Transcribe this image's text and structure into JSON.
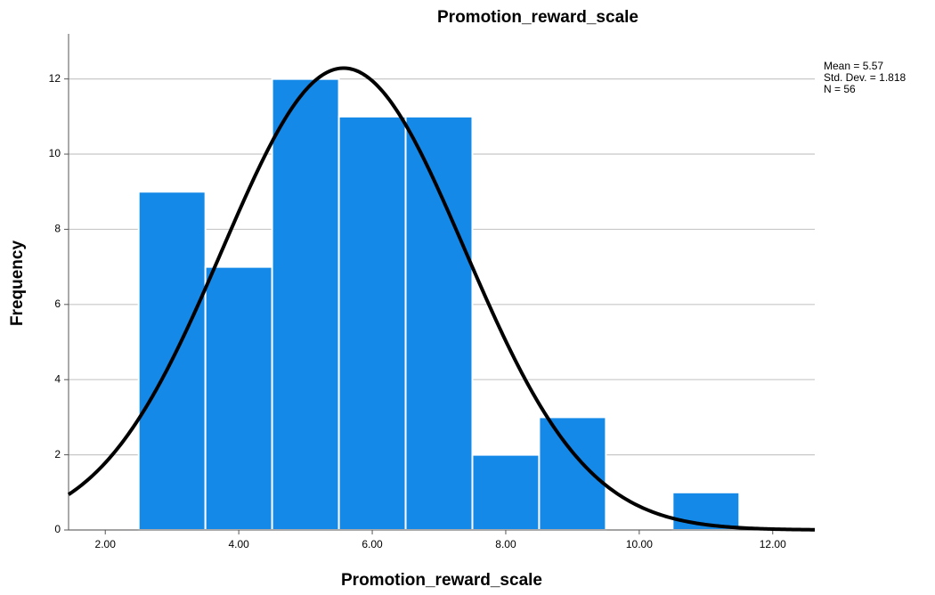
{
  "chart_data": {
    "type": "histogram",
    "title": "Promotion_reward_scale",
    "x_label": "Promotion_reward_scale",
    "y_label": "Frequency",
    "bins": [
      2.5,
      3.5,
      4.5,
      5.5,
      6.5,
      7.5,
      8.5,
      9.5,
      10.5,
      11.5
    ],
    "counts": [
      9,
      7,
      12,
      11,
      11,
      2,
      3,
      0,
      1
    ],
    "color": "#1589e8",
    "xlim": [
      1.45,
      12.63
    ],
    "ylim": [
      0,
      13.2
    ],
    "xticks": [
      {
        "value": 2,
        "label": "2.00"
      },
      {
        "value": 4,
        "label": "4.00"
      },
      {
        "value": 6,
        "label": "6.00"
      },
      {
        "value": 8,
        "label": "8.00"
      },
      {
        "value": 10,
        "label": "10.00"
      },
      {
        "value": 12,
        "label": "12.00"
      }
    ],
    "yticks": [
      0,
      2,
      4,
      6,
      8,
      10,
      12
    ],
    "grid": true,
    "stats": {
      "mean": {
        "value": 5.57,
        "label": "Mean = 5.57"
      },
      "std_dev": {
        "value": 1.818,
        "label": "Std. Dev. = 1.818"
      },
      "n": {
        "value": 56,
        "label": "N = 56"
      }
    }
  }
}
